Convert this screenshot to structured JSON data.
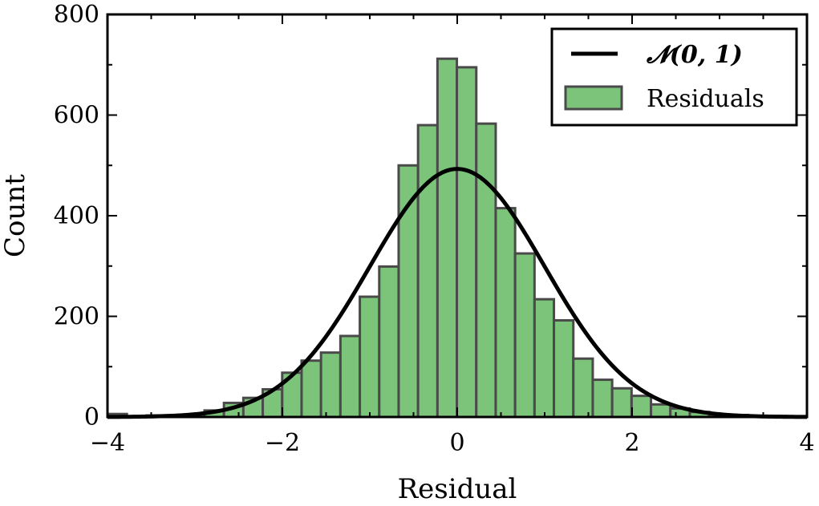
{
  "chart_data": {
    "type": "bar",
    "xlabel": "Residual",
    "ylabel": "Count",
    "xlim": [
      -4,
      4
    ],
    "ylim": [
      0,
      800
    ],
    "x_ticks": [
      -4,
      -2,
      0,
      2,
      4
    ],
    "x_tick_labels": [
      "−4",
      "−2",
      "0",
      "2",
      "4"
    ],
    "y_ticks": [
      0,
      200,
      400,
      600,
      800
    ],
    "y_tick_labels": [
      "0",
      "200",
      "400",
      "600",
      "800"
    ],
    "grid": false,
    "legend_position": "top-right",
    "histogram": {
      "name": "Residuals",
      "bin_width": 0.222,
      "bin_start": -4.0,
      "color": "#7bc47a",
      "edge_color": "#4a4a4a",
      "counts": [
        6,
        1,
        3,
        3,
        5,
        13,
        28,
        38,
        55,
        88,
        112,
        128,
        161,
        239,
        299,
        500,
        580,
        712,
        695,
        583,
        415,
        325,
        234,
        192,
        116,
        74,
        57,
        42,
        25,
        17,
        10,
        5,
        4,
        2,
        2,
        1
      ]
    },
    "curve": {
      "name": "𝓝(0, 1)",
      "mean": 0,
      "std": 1,
      "peak_count": 493,
      "color": "#000000"
    }
  },
  "legend": {
    "curve_label": "𝓝(0, 1)",
    "bars_label": "Residuals"
  }
}
